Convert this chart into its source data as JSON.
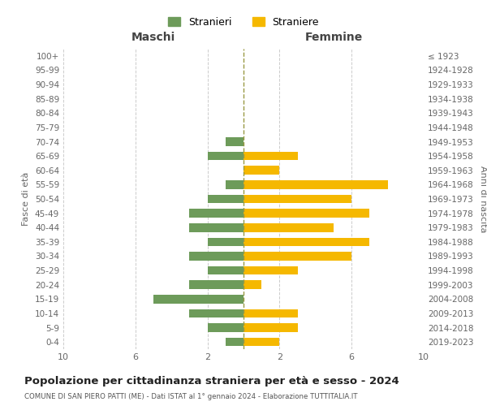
{
  "age_groups": [
    "100+",
    "95-99",
    "90-94",
    "85-89",
    "80-84",
    "75-79",
    "70-74",
    "65-69",
    "60-64",
    "55-59",
    "50-54",
    "45-49",
    "40-44",
    "35-39",
    "30-34",
    "25-29",
    "20-24",
    "15-19",
    "10-14",
    "5-9",
    "0-4"
  ],
  "birth_years": [
    "≤ 1923",
    "1924-1928",
    "1929-1933",
    "1934-1938",
    "1939-1943",
    "1944-1948",
    "1949-1953",
    "1954-1958",
    "1959-1963",
    "1964-1968",
    "1969-1973",
    "1974-1978",
    "1979-1983",
    "1984-1988",
    "1989-1993",
    "1994-1998",
    "1999-2003",
    "2004-2008",
    "2009-2013",
    "2014-2018",
    "2019-2023"
  ],
  "maschi": [
    0,
    0,
    0,
    0,
    0,
    0,
    1,
    2,
    0,
    1,
    2,
    3,
    3,
    2,
    3,
    2,
    3,
    5,
    3,
    2,
    1
  ],
  "femmine": [
    0,
    0,
    0,
    0,
    0,
    0,
    0,
    3,
    2,
    8,
    6,
    7,
    5,
    7,
    6,
    3,
    1,
    0,
    3,
    3,
    2
  ],
  "color_maschi": "#6d9b5a",
  "color_femmine": "#f5b800",
  "title": "Popolazione per cittadinanza straniera per età e sesso - 2024",
  "subtitle": "COMUNE DI SAN PIERO PATTI (ME) - Dati ISTAT al 1° gennaio 2024 - Elaborazione TUTTITALIA.IT",
  "xlabel_left": "Maschi",
  "xlabel_right": "Femmine",
  "ylabel_left": "Fasce di età",
  "ylabel_right": "Anni di nascita",
  "legend_maschi": "Stranieri",
  "legend_femmine": "Straniere",
  "xlim": 10,
  "background_color": "#ffffff",
  "grid_color": "#cccccc"
}
